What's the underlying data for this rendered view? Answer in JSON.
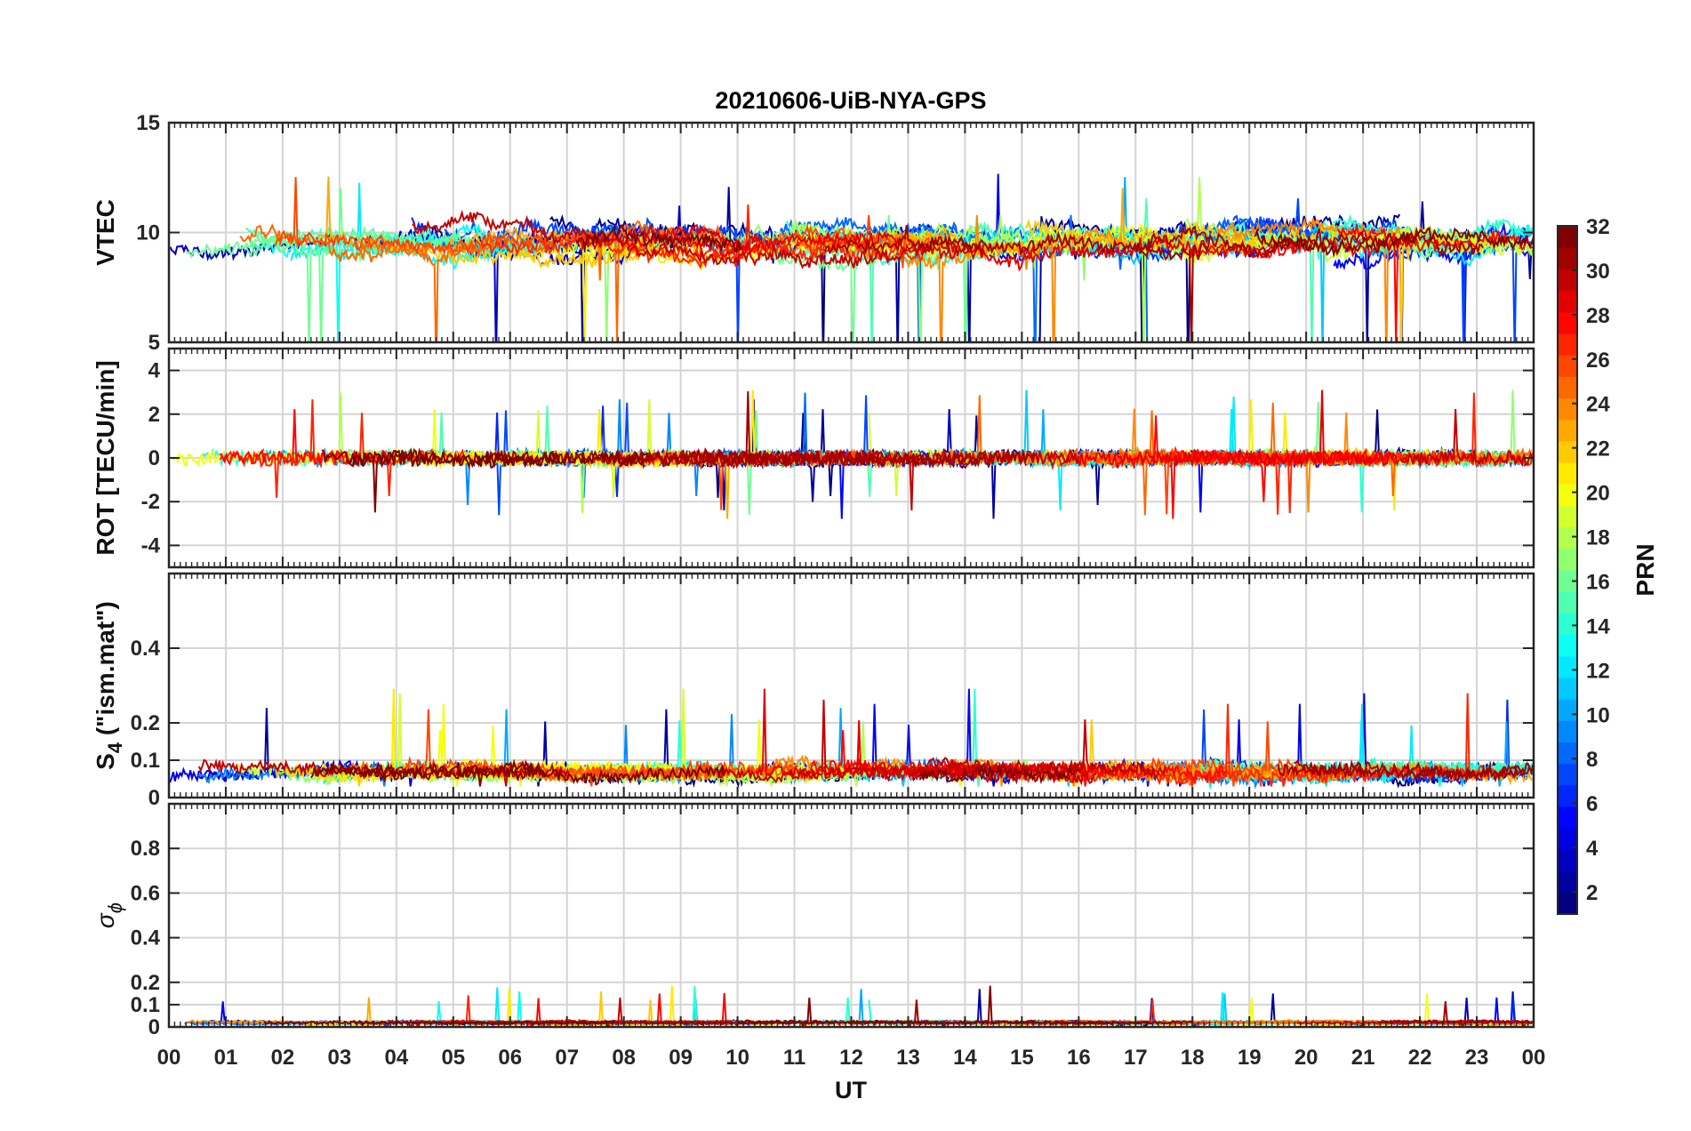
{
  "chart_data": {
    "type": "line",
    "title": "20210606-UiB-NYA-GPS",
    "xlabel": "UT",
    "x_tick_labels": [
      "00",
      "01",
      "02",
      "03",
      "04",
      "05",
      "06",
      "07",
      "08",
      "09",
      "10",
      "11",
      "12",
      "13",
      "14",
      "15",
      "16",
      "17",
      "18",
      "19",
      "20",
      "21",
      "22",
      "23",
      "00"
    ],
    "xlim_hours": [
      0,
      24
    ],
    "colormap": "jet",
    "colorbar": {
      "label": "PRN",
      "range": [
        1,
        32
      ],
      "tick_labels": [
        "2",
        "4",
        "6",
        "8",
        "10",
        "12",
        "14",
        "16",
        "18",
        "20",
        "22",
        "24",
        "26",
        "28",
        "30",
        "32"
      ],
      "placement": "right"
    },
    "panels": [
      {
        "name": "vtec",
        "ylabel": "VTEC",
        "ylim": [
          5,
          15
        ],
        "y_ticks": [
          5,
          10,
          15
        ],
        "grid": true,
        "baseline": 9.6,
        "spread": 0.9,
        "noise": 0.25,
        "extreme": [
          5.2,
          12.9
        ]
      },
      {
        "name": "rot",
        "ylabel": "ROT [TECU/min]",
        "ylim": [
          -5,
          5
        ],
        "y_ticks": [
          -4,
          -2,
          0,
          2,
          4
        ],
        "grid": true,
        "baseline": 0.0,
        "spread": 0.15,
        "noise": 0.3,
        "extreme": [
          -2.9,
          3.2
        ]
      },
      {
        "name": "s4",
        "ylabel_main": "S",
        "ylabel_sub": "4",
        "ylabel_rest": " (\"ism.mat\")",
        "ylim": [
          0,
          0.6
        ],
        "y_ticks": [
          0,
          0.1,
          0.2,
          0.4
        ],
        "grid": true,
        "baseline": 0.07,
        "spread": 0.02,
        "noise": 0.015,
        "extreme": [
          0.03,
          0.3
        ]
      },
      {
        "name": "sigma_phi",
        "ylabel_main": "σ",
        "ylabel_sub": "ϕ",
        "ylim": [
          0,
          1
        ],
        "y_ticks": [
          0,
          0.1,
          0.2,
          0.4,
          0.6,
          0.8
        ],
        "grid": true,
        "baseline": 0.02,
        "spread": 0.005,
        "noise": 0.006,
        "extreme": [
          0,
          0.19
        ]
      }
    ],
    "series_prn": [
      1,
      2,
      3,
      4,
      5,
      6,
      7,
      8,
      9,
      10,
      11,
      12,
      13,
      14,
      15,
      16,
      17,
      18,
      19,
      20,
      21,
      22,
      23,
      24,
      25,
      26,
      27,
      28,
      29,
      30,
      31,
      32
    ]
  }
}
